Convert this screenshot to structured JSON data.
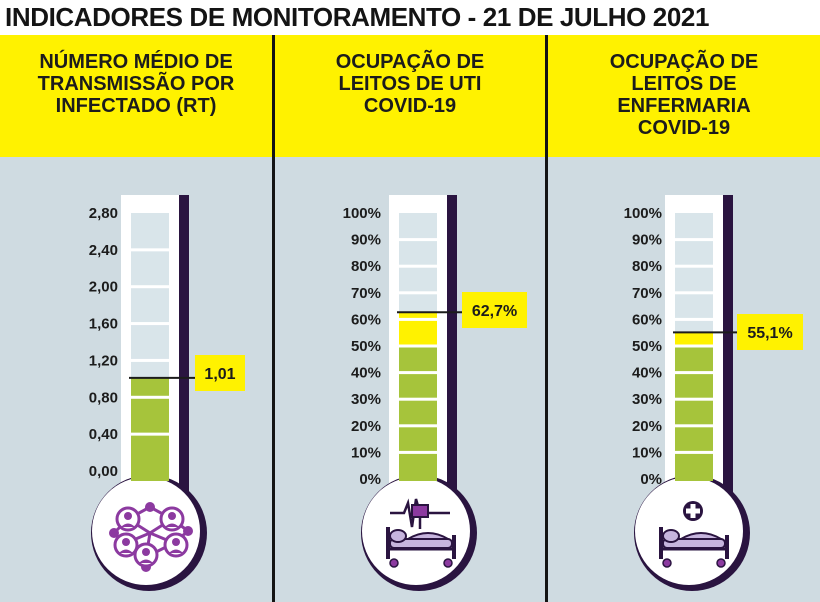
{
  "title": "INDICADORES DE MONITORAMENTO - 21 DE JULHO 2021",
  "colors": {
    "header": "#fff200",
    "background": "#cfdbe1",
    "tube": "#d9e5ea",
    "fill_green": "#a6c43b",
    "fill_yellow": "#fff200",
    "icon_purple": "#8c3aa0",
    "bed_lavender": "#c7b5de",
    "outline": "#2a1440"
  },
  "panels": [
    {
      "header_lines": [
        "NÚMERO MÉDIO DE",
        "TRANSMISSÃO POR",
        "INFECTADO (RT)"
      ],
      "icon": "network-people-icon"
    },
    {
      "header_lines": [
        "OCUPAÇÃO DE",
        "LEITOS DE UTI",
        "COVID-19"
      ],
      "icon": "icu-bed-monitor-icon"
    },
    {
      "header_lines": [
        "OCUPAÇÃO DE",
        "LEITOS DE",
        "ENFERMARIA",
        "COVID-19"
      ],
      "icon": "hospital-bed-cross-icon"
    }
  ],
  "chart_data": [
    {
      "type": "thermometer",
      "title": "NÚMERO MÉDIO DE TRANSMISSÃO POR INFECTADO (RT)",
      "tick_labels": [
        "0,00",
        "0,40",
        "0,80",
        "1,20",
        "1,60",
        "2,00",
        "2,40",
        "2,80"
      ],
      "ylim": [
        0,
        2.8
      ],
      "value": 1.01,
      "value_label": "1,01",
      "green_fill_upto": 1.01,
      "yellow_fill_upto": 1.01
    },
    {
      "type": "thermometer",
      "title": "OCUPAÇÃO DE LEITOS DE UTI COVID-19",
      "tick_labels": [
        "0%",
        "10%",
        "20%",
        "30%",
        "40%",
        "50%",
        "60%",
        "70%",
        "80%",
        "90%",
        "100%"
      ],
      "ylim": [
        0,
        100
      ],
      "value": 62.7,
      "value_label": "62,7%",
      "green_fill_upto": 50,
      "yellow_fill_upto": 62.7
    },
    {
      "type": "thermometer",
      "title": "OCUPAÇÃO DE LEITOS DE ENFERMARIA COVID-19",
      "tick_labels": [
        "0%",
        "10%",
        "20%",
        "30%",
        "40%",
        "50%",
        "60%",
        "70%",
        "80%",
        "90%",
        "100%"
      ],
      "ylim": [
        0,
        100
      ],
      "value": 55.1,
      "value_label": "55,1%",
      "green_fill_upto": 50,
      "yellow_fill_upto": 55.1
    }
  ]
}
